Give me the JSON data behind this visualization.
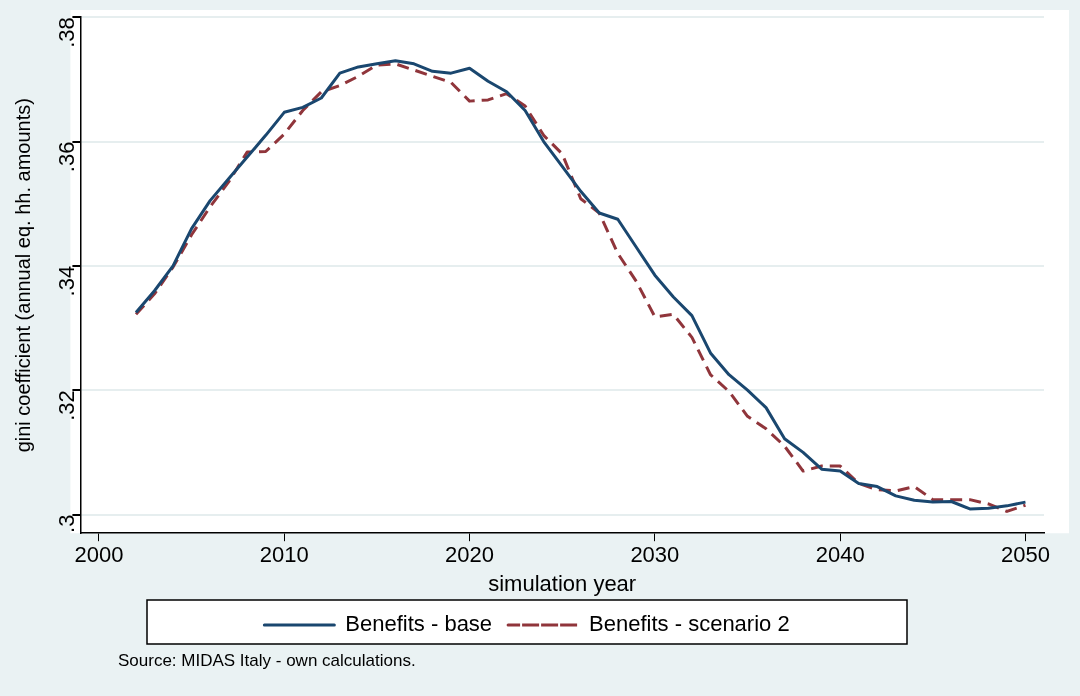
{
  "chart_data": {
    "type": "line",
    "xlabel": "simulation year",
    "ylabel": "gini coefficient (annual eq. hh. amounts)",
    "annotations": [
      "Source: MIDAS Italy - own calculations."
    ],
    "x": [
      2002,
      2003,
      2004,
      2005,
      2006,
      2007,
      2008,
      2009,
      2010,
      2011,
      2012,
      2013,
      2014,
      2015,
      2016,
      2017,
      2018,
      2019,
      2020,
      2021,
      2022,
      2023,
      2024,
      2025,
      2026,
      2027,
      2028,
      2029,
      2030,
      2031,
      2032,
      2033,
      2034,
      2035,
      2036,
      2037,
      2038,
      2039,
      2040,
      2041,
      2042,
      2043,
      2044,
      2045,
      2046,
      2047,
      2048,
      2049,
      2050
    ],
    "series": [
      {
        "name": "Benefits - base",
        "color": "#1a476f",
        "line_style": "solid",
        "values": [
          0.3325,
          0.336,
          0.34,
          0.346,
          0.3505,
          0.354,
          0.3575,
          0.361,
          0.3647,
          0.3655,
          0.367,
          0.371,
          0.372,
          0.3725,
          0.373,
          0.3725,
          0.3713,
          0.371,
          0.3718,
          0.3697,
          0.368,
          0.365,
          0.36,
          0.356,
          0.352,
          0.3485,
          0.3475,
          0.343,
          0.3385,
          0.335,
          0.332,
          0.326,
          0.3225,
          0.32,
          0.3172,
          0.3122,
          0.31,
          0.3073,
          0.307,
          0.305,
          0.3045,
          0.303,
          0.3023,
          0.302,
          0.3021,
          0.3009,
          0.301,
          0.3014,
          0.302
        ]
      },
      {
        "name": "Benefits - scenario 2",
        "color": "#90353b",
        "line_style": "dashed",
        "values": [
          0.3322,
          0.3355,
          0.3398,
          0.345,
          0.3495,
          0.3535,
          0.3583,
          0.3584,
          0.3612,
          0.365,
          0.368,
          0.369,
          0.3705,
          0.3723,
          0.3725,
          0.3715,
          0.3705,
          0.3695,
          0.3665,
          0.3667,
          0.3677,
          0.3657,
          0.361,
          0.358,
          0.3508,
          0.3485,
          0.342,
          0.3375,
          0.3318,
          0.3322,
          0.3285,
          0.3225,
          0.3198,
          0.3158,
          0.3138,
          0.311,
          0.307,
          0.3078,
          0.3078,
          0.305,
          0.304,
          0.3038,
          0.3045,
          0.3024,
          0.3024,
          0.3024,
          0.3017,
          0.3005,
          0.3015
        ]
      }
    ],
    "xlim": [
      1999,
      2051
    ],
    "xticks": [
      2000,
      2010,
      2020,
      2030,
      2040,
      2050
    ],
    "ylim": [
      0.297,
      0.38
    ],
    "yticks": [
      {
        "value": 0.3,
        "label": ".3"
      },
      {
        "value": 0.32,
        "label": ".32"
      },
      {
        "value": 0.34,
        "label": ".34"
      },
      {
        "value": 0.36,
        "label": ".36"
      },
      {
        "value": 0.38,
        "label": ".38"
      }
    ],
    "grid": "y",
    "legend": "bottom",
    "marker": "none"
  }
}
